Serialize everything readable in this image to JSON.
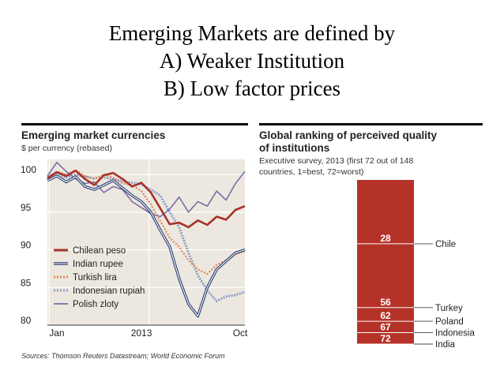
{
  "slide": {
    "title_lines": [
      "Emerging Markets are defined by",
      "A) Weaker Institution",
      "B) Low factor prices"
    ]
  },
  "source": "Sources: Thomson Reuters Datastream; World Economic Forum",
  "chart_data": [
    {
      "type": "line",
      "title": "Emerging market currencies",
      "subtitle": "$ per currency (rebased)",
      "x_ticks": [
        "Jan",
        "2013",
        "Oct"
      ],
      "y_ticks": [
        100,
        95,
        90,
        85,
        80
      ],
      "ylim": [
        80,
        102
      ],
      "grid": true,
      "legend_position": "left",
      "x": [
        0,
        1,
        2,
        3,
        4,
        5,
        6,
        7,
        8,
        9,
        10,
        11,
        12,
        13,
        14,
        15,
        16,
        17,
        18,
        19,
        20,
        21
      ],
      "series": [
        {
          "name": "Chilean peso",
          "color": "#a8312a",
          "style": "solid",
          "values": [
            99.5,
            100.3,
            99.8,
            100.5,
            99.4,
            98.6,
            99.9,
            100.2,
            99.4,
            98.4,
            98.9,
            97.6,
            95.5,
            93.4,
            93.6,
            93.0,
            93.9,
            93.3,
            94.4,
            94.0,
            95.3,
            95.8
          ]
        },
        {
          "name": "Indian rupee",
          "color": "#2b3e75",
          "style": "double",
          "values": [
            99.2,
            99.8,
            99.0,
            99.7,
            98.4,
            98.0,
            98.6,
            99.2,
            98.2,
            97.2,
            96.4,
            95.0,
            92.6,
            90.4,
            86.2,
            82.8,
            81.2,
            85.0,
            87.4,
            88.5,
            89.6,
            90.0
          ]
        },
        {
          "name": "Turkish lira",
          "color": "#e08a5e",
          "style": "dotted",
          "values": [
            99.6,
            100.4,
            100.0,
            100.6,
            99.8,
            99.4,
            100.0,
            99.6,
            98.8,
            98.6,
            97.8,
            96.0,
            93.8,
            91.6,
            90.4,
            88.6,
            87.4,
            86.8,
            88.0,
            88.6,
            89.4,
            89.8
          ]
        },
        {
          "name": "Indonesian rupiah",
          "color": "#8a9cc6",
          "style": "dotted-blue",
          "values": [
            99.8,
            100.0,
            99.6,
            100.0,
            99.7,
            99.5,
            99.6,
            99.4,
            99.1,
            98.9,
            98.7,
            98.0,
            97.2,
            95.0,
            93.0,
            89.6,
            86.6,
            84.6,
            83.2,
            83.8,
            84.0,
            84.4
          ]
        },
        {
          "name": "Polish zloty",
          "color": "#7d6ba8",
          "style": "solid",
          "values": [
            99.8,
            101.6,
            100.4,
            99.4,
            98.8,
            99.0,
            97.6,
            98.4,
            98.0,
            96.4,
            95.6,
            94.8,
            94.4,
            95.4,
            97.0,
            95.0,
            96.4,
            95.8,
            97.8,
            96.6,
            98.8,
            100.4
          ]
        }
      ]
    },
    {
      "type": "bar",
      "title_lines": [
        "Global ranking of perceived quality",
        "of institutions"
      ],
      "subtitle_lines": [
        "Executive survey, 2013 (first 72 out of 148",
        "countries, 1=best, 72=worst)"
      ],
      "range": [
        1,
        72
      ],
      "bar_color": "#b53228",
      "countries": [
        {
          "name": "Chile",
          "rank": 28
        },
        {
          "name": "Turkey",
          "rank": 56
        },
        {
          "name": "Poland",
          "rank": 62
        },
        {
          "name": "Indonesia",
          "rank": 67
        },
        {
          "name": "India",
          "rank": 72
        }
      ]
    }
  ]
}
